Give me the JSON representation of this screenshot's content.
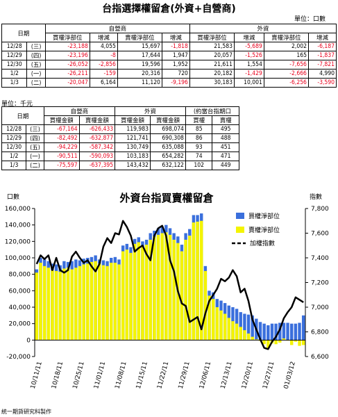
{
  "title": "台指選擇權留倉(外資+自營商)",
  "table1": {
    "unit": "單位：口數",
    "header_date": "日期",
    "group_dealer": "自營商",
    "group_foreign": "外資",
    "cols": [
      "買權淨部位",
      "增減",
      "賣權淨部位",
      "增減",
      "買權淨部位",
      "增減",
      "賣權淨部位",
      "增減"
    ],
    "rows": [
      {
        "date": "12/28",
        "dow": "(三)",
        "cells": [
          "-23,188",
          "4,055",
          "15,697",
          "-1,818",
          "21,583",
          "-5,689",
          "2,002",
          "-6,187"
        ]
      },
      {
        "date": "12/29",
        "dow": "(四)",
        "cells": [
          "-23,196",
          "-8",
          "17,644",
          "1,947",
          "20,057",
          "-1,526",
          "165",
          "-1,837"
        ]
      },
      {
        "date": "12/30",
        "dow": "(五)",
        "cells": [
          "-26,052",
          "-2,856",
          "19,596",
          "1,952",
          "21,611",
          "1,554",
          "-7,656",
          "-7,821"
        ]
      },
      {
        "date": "1/2",
        "dow": "(一)",
        "cells": [
          "-26,211",
          "-159",
          "20,316",
          "720",
          "20,182",
          "-1,429",
          "-2,666",
          "4,990"
        ]
      },
      {
        "date": "1/3",
        "dow": "(二)",
        "cells": [
          "-20,047",
          "6,164",
          "11,120",
          "-9,196",
          "30,183",
          "10,001",
          "-6,256",
          "-3,590"
        ]
      }
    ]
  },
  "table2": {
    "unit": "單位：千元",
    "header_date": "日期",
    "group_dealer": "自營商",
    "group_foreign": "外資",
    "group_ratio": "(約當台指期口",
    "cols": [
      "買權金額",
      "賣權金額",
      "買權金額",
      "賣權金額",
      "買權",
      "賣權"
    ],
    "rows": [
      {
        "date": "12/28",
        "dow": "(三)",
        "cells": [
          "-67,164",
          "-626,433",
          "119,983",
          "698,074",
          "85",
          "495"
        ]
      },
      {
        "date": "12/29",
        "dow": "(四)",
        "cells": [
          "-82,492",
          "-632,877",
          "121,741",
          "690,308",
          "86",
          "488"
        ]
      },
      {
        "date": "12/30",
        "dow": "(五)",
        "cells": [
          "-94,229",
          "-587,342",
          "130,749",
          "635,088",
          "93",
          "451"
        ]
      },
      {
        "date": "1/2",
        "dow": "(一)",
        "cells": [
          "-90,511",
          "-590,093",
          "103,183",
          "654,282",
          "74",
          "471"
        ]
      },
      {
        "date": "1/3",
        "dow": "(二)",
        "cells": [
          "-75,597",
          "-637,395",
          "143,432",
          "632,122",
          "102",
          "449"
        ]
      }
    ]
  },
  "footer": "統一期貨研究科製作",
  "colors": {
    "call": "#3a6fdc",
    "put": "#f4f400",
    "index": "#000000",
    "negative": "#e8001c"
  },
  "chart_data": {
    "type": "bar+line",
    "title": "外資台指買賣權留倉",
    "left_axis_label": "口數",
    "right_axis_label": "指數",
    "ylim_left": [
      -20000,
      160000
    ],
    "yticks_left": [
      -20000,
      0,
      20000,
      40000,
      60000,
      80000,
      100000,
      120000,
      140000,
      160000
    ],
    "ytick_labels_left": [
      "-20,000",
      "0",
      "20,000",
      "40,000",
      "60,000",
      "80,000",
      "100,000",
      "120,000",
      "140,000",
      "160,000"
    ],
    "ylim_right": [
      6600,
      7800
    ],
    "yticks_right": [
      6600,
      6800,
      7000,
      7200,
      7400,
      7600,
      7800
    ],
    "ytick_labels_right": [
      "6,600",
      "6,800",
      "7,000",
      "7,200",
      "7,400",
      "7,600",
      "7,800"
    ],
    "x_tick_labels": [
      "10/11/11",
      "10/18/11",
      "10/25/11",
      "11/01/11",
      "11/08/11",
      "11/15/11",
      "11/22/11",
      "11/29/11",
      "12/06/11",
      "12/13/11",
      "12/20/11",
      "12/27/11",
      "01/03/12"
    ],
    "legend": [
      "買權淨部位",
      "賣權淨部位",
      "加權指數"
    ],
    "legend_position": "top-right",
    "series": [
      {
        "name": "買權淨部位",
        "values": [
          86000,
          100000,
          98000,
          96000,
          93000,
          92000,
          91000,
          96000,
          95000,
          96000,
          98000,
          97000,
          99000,
          100000,
          101000,
          103000,
          98000,
          97000,
          96000,
          100000,
          101000,
          98000,
          115000,
          117000,
          113000,
          123000,
          125000,
          120000,
          122000,
          130000,
          133000,
          136000,
          138000,
          140000,
          136000,
          130000,
          126000,
          116000,
          130000,
          135000,
          152000,
          152000,
          154000,
          90000,
          60000,
          58000,
          50000,
          48000,
          45000,
          42000,
          40000,
          38000,
          34000,
          32000,
          31000,
          30000,
          26000,
          22000,
          20000,
          18000,
          20000,
          20000,
          21000,
          21000,
          21000,
          20000,
          20000,
          21000,
          30000
        ]
      },
      {
        "name": "賣權淨部位",
        "values": [
          82000,
          94000,
          90000,
          88000,
          85000,
          84000,
          83000,
          87000,
          88000,
          86000,
          88000,
          90000,
          92000,
          93000,
          95000,
          96000,
          93000,
          91000,
          90000,
          94000,
          94000,
          92000,
          108000,
          110000,
          106000,
          117000,
          119000,
          114000,
          116000,
          122000,
          126000,
          128000,
          130000,
          131000,
          128000,
          122000,
          118000,
          108000,
          122000,
          127000,
          143000,
          144000,
          145000,
          84000,
          54000,
          50000,
          40000,
          36000,
          32000,
          27000,
          23000,
          20000,
          16000,
          12000,
          8000,
          4000,
          1000,
          -1000,
          -5000,
          -10000,
          -4000,
          -5000,
          -3000,
          2000,
          0,
          -6000,
          -2000,
          -7000,
          -6000
        ]
      },
      {
        "name": "加權指數",
        "values": [
          7350,
          7420,
          7390,
          7420,
          7300,
          7400,
          7300,
          7280,
          7300,
          7410,
          7450,
          7400,
          7360,
          7380,
          7330,
          7290,
          7350,
          7490,
          7560,
          7520,
          7600,
          7590,
          7700,
          7650,
          7580,
          7450,
          7480,
          7500,
          7430,
          7380,
          7580,
          7640,
          7660,
          7580,
          7380,
          7290,
          7130,
          7030,
          7010,
          6880,
          6900,
          6920,
          6820,
          6950,
          7050,
          7100,
          7150,
          7230,
          7210,
          7240,
          7300,
          7250,
          7120,
          7150,
          7050,
          6900,
          6820,
          6740,
          6670,
          6660,
          6720,
          6760,
          6820,
          6910,
          6960,
          7000,
          7080,
          7060,
          7040
        ]
      }
    ]
  }
}
